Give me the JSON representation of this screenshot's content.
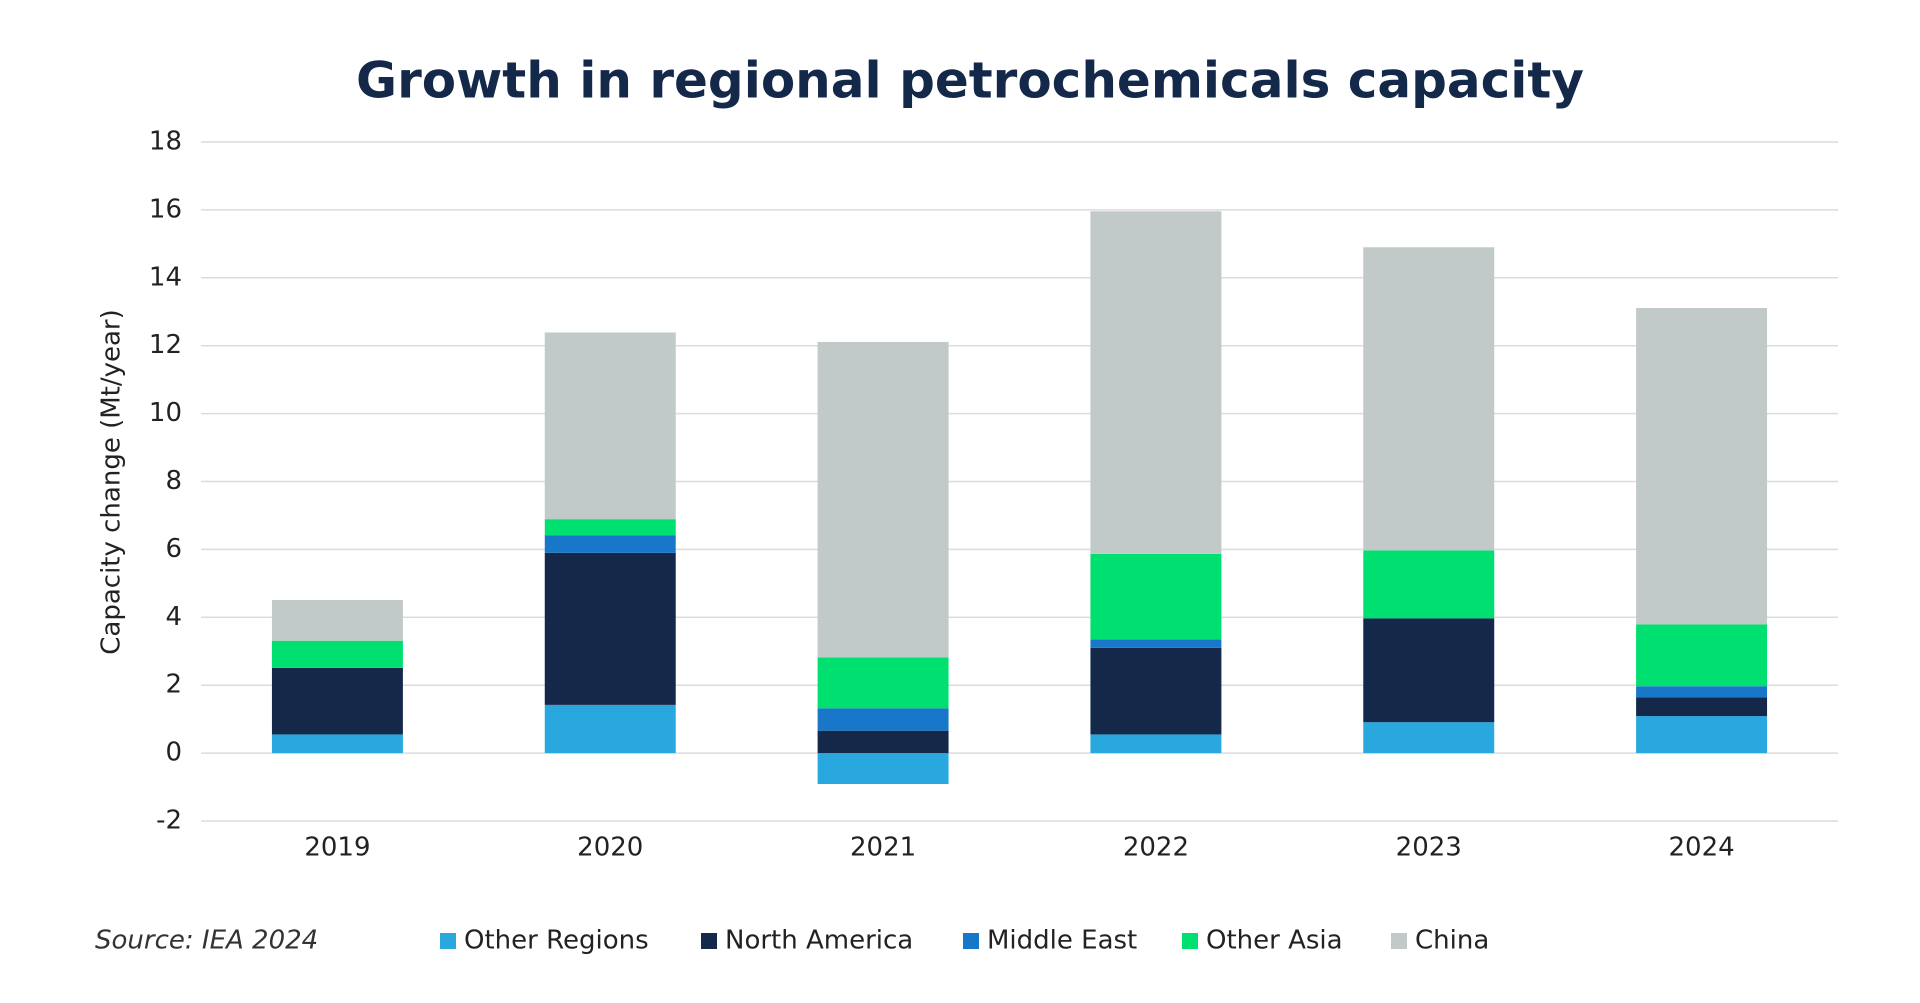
{
  "chart_data": {
    "type": "stacked_bar",
    "title": "Growth in regional petrochemicals capacity",
    "y_label": "Capacity change (Mt/year)",
    "source": "Source: IEA 2024",
    "categories": [
      "2019",
      "2020",
      "2021",
      "2022",
      "2023",
      "2024"
    ],
    "series": [
      {
        "name": "Other Regions",
        "color": "#29a8e0",
        "values": [
          0.55,
          1.42,
          -0.91,
          0.55,
          0.91,
          1.09
        ]
      },
      {
        "name": "North America",
        "color": "#14284a",
        "values": [
          1.96,
          4.48,
          0.66,
          2.55,
          3.06,
          0.55
        ]
      },
      {
        "name": "Middle East",
        "color": "#1877c9",
        "values": [
          0,
          0.51,
          0.66,
          0.25,
          0,
          0.33
        ]
      },
      {
        "name": "Other Asia",
        "color": "#00e070",
        "values": [
          0.8,
          0.48,
          1.5,
          2.52,
          2.0,
          1.82
        ]
      },
      {
        "name": "China",
        "color": "#c2c9c9",
        "values": [
          1.2,
          5.5,
          9.29,
          10.09,
          8.93,
          9.32
        ]
      }
    ],
    "ylim": [
      -2,
      18
    ],
    "yticks": [
      -2,
      0,
      2,
      4,
      6,
      8,
      10,
      12,
      14,
      16,
      18
    ],
    "grid": true
  }
}
